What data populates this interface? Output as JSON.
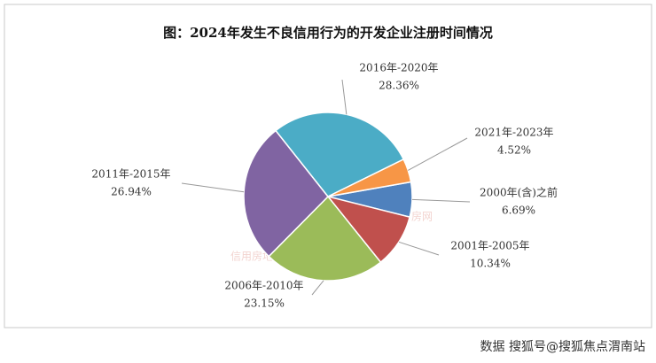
{
  "chart_data": {
    "type": "pie",
    "title": "图：2024年发生不良信用行为的开发企业注册时间情况",
    "categories": [
      "2000年(含)之前",
      "2001年-2005年",
      "2006年-2010年",
      "2011年-2015年",
      "2016年-2020年",
      "2021年-2023年"
    ],
    "values": [
      6.69,
      10.34,
      23.15,
      26.94,
      28.36,
      4.52
    ],
    "value_labels": [
      "6.69%",
      "10.34%",
      "23.15%",
      "26.94%",
      "28.36%",
      "4.52%"
    ],
    "colors": [
      "#4f81bd",
      "#c0504d",
      "#9bbb59",
      "#8064a2",
      "#4bacc6",
      "#f79646"
    ],
    "watermarks": [
      "信用房地产",
      "中房网"
    ],
    "source": "数据 搜狐号@搜狐焦点渭南站"
  }
}
